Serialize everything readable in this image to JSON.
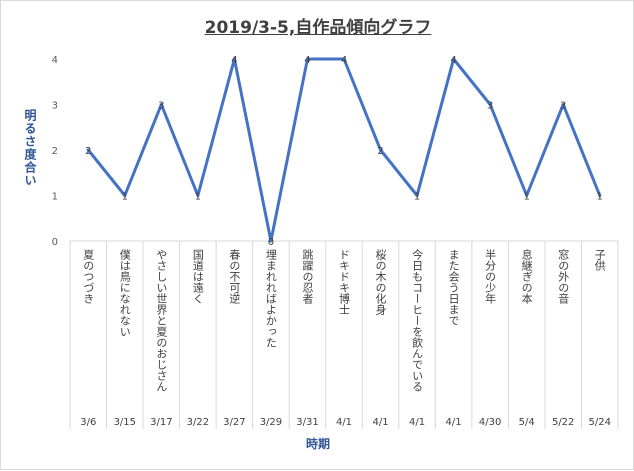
{
  "chart_data": {
    "type": "line",
    "title": "2019/3-5,自作品傾向グラフ",
    "xlabel": "時期",
    "ylabel": "明るさ度合い",
    "ylim": [
      0,
      4
    ],
    "yticks": [
      "0",
      "1",
      "2",
      "3",
      "4"
    ],
    "grid": false,
    "legend": "none",
    "categories": [
      {
        "title": "夏のつづき",
        "date": "3/6"
      },
      {
        "title": "僕は鳥になれない",
        "date": "3/15"
      },
      {
        "title": "やさしい世界と夏のおじさん",
        "date": "3/17"
      },
      {
        "title": "国道は遠く",
        "date": "3/22"
      },
      {
        "title": "春の不可逆",
        "date": "3/27"
      },
      {
        "title": "埋まれればよかった",
        "date": "3/29"
      },
      {
        "title": "跳躍の忍者",
        "date": "3/31"
      },
      {
        "title": "ドキドキ博士",
        "date": "4/1"
      },
      {
        "title": "桜の木の化身",
        "date": "4/1"
      },
      {
        "title": "今日もコーヒーを飲んでいる",
        "date": "4/1"
      },
      {
        "title": "また会う日まで",
        "date": "4/1"
      },
      {
        "title": "半分の少年",
        "date": "4/30"
      },
      {
        "title": "息継ぎの本",
        "date": "5/4"
      },
      {
        "title": "窓の外の音",
        "date": "5/22"
      },
      {
        "title": "子供",
        "date": "5/24"
      }
    ],
    "values": [
      2,
      1,
      3,
      1,
      4,
      0,
      4,
      4,
      2,
      1,
      4,
      3,
      1,
      3,
      1
    ],
    "line_color": "#4472c4"
  }
}
